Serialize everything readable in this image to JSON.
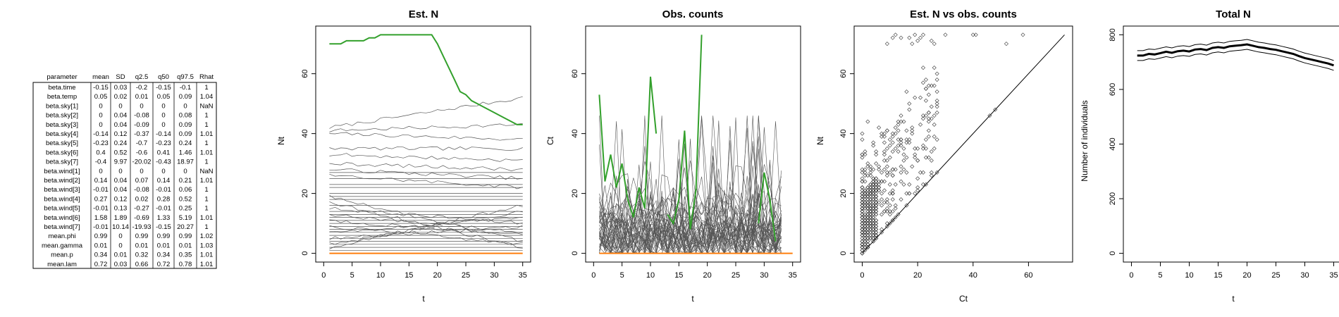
{
  "param_table": {
    "columns": [
      "parameter",
      "mean",
      "SD",
      "q2.5",
      "q50",
      "q97.5",
      "Rhat"
    ],
    "rows": [
      [
        "beta.time",
        "-0.15",
        "0.03",
        "-0.2",
        "-0.15",
        "-0.1",
        "1"
      ],
      [
        "beta.temp",
        "0.05",
        "0.02",
        "0.01",
        "0.05",
        "0.09",
        "1.04"
      ],
      [
        "beta.sky[1]",
        "0",
        "0",
        "0",
        "0",
        "0",
        "NaN"
      ],
      [
        "beta.sky[2]",
        "0",
        "0.04",
        "-0.08",
        "0",
        "0.08",
        "1"
      ],
      [
        "beta.sky[3]",
        "0",
        "0.04",
        "-0.09",
        "0",
        "0.09",
        "1"
      ],
      [
        "beta.sky[4]",
        "-0.14",
        "0.12",
        "-0.37",
        "-0.14",
        "0.09",
        "1.01"
      ],
      [
        "beta.sky[5]",
        "-0.23",
        "0.24",
        "-0.7",
        "-0.23",
        "0.24",
        "1"
      ],
      [
        "beta.sky[6]",
        "0.4",
        "0.52",
        "-0.6",
        "0.41",
        "1.46",
        "1.01"
      ],
      [
        "beta.sky[7]",
        "-0.4",
        "9.97",
        "-20.02",
        "-0.43",
        "18.97",
        "1"
      ],
      [
        "beta.wind[1]",
        "0",
        "0",
        "0",
        "0",
        "0",
        "NaN"
      ],
      [
        "beta.wind[2]",
        "0.14",
        "0.04",
        "0.07",
        "0.14",
        "0.21",
        "1.01"
      ],
      [
        "beta.wind[3]",
        "-0.01",
        "0.04",
        "-0.08",
        "-0.01",
        "0.06",
        "1"
      ],
      [
        "beta.wind[4]",
        "0.27",
        "0.12",
        "0.02",
        "0.28",
        "0.52",
        "1"
      ],
      [
        "beta.wind[5]",
        "-0.01",
        "0.13",
        "-0.27",
        "-0.01",
        "0.25",
        "1"
      ],
      [
        "beta.wind[6]",
        "1.58",
        "1.89",
        "-0.69",
        "1.33",
        "5.19",
        "1.01"
      ],
      [
        "beta.wind[7]",
        "-0.01",
        "10.14",
        "-19.93",
        "-0.15",
        "20.27",
        "1"
      ],
      [
        "mean.phi",
        "0.99",
        "0",
        "0.99",
        "0.99",
        "0.99",
        "1.02"
      ],
      [
        "mean.gamma",
        "0.01",
        "0",
        "0.01",
        "0.01",
        "0.01",
        "1.03"
      ],
      [
        "mean.p",
        "0.34",
        "0.01",
        "0.32",
        "0.34",
        "0.35",
        "1.01"
      ],
      [
        "mean.lam",
        "0.72",
        "0.03",
        "0.66",
        "0.72",
        "0.78",
        "1.01"
      ]
    ]
  },
  "chart_data": [
    {
      "id": "est_n",
      "type": "line",
      "title": "Est. N",
      "xlabel": "t",
      "ylabel": "Nt",
      "xlim": [
        0,
        35
      ],
      "ylim": [
        0,
        73
      ],
      "xticks": [
        0,
        5,
        10,
        15,
        20,
        25,
        30,
        35
      ],
      "yticks": [
        0,
        20,
        40,
        60
      ],
      "colors": {
        "background_series": "#555555",
        "highlight": "#33a02c",
        "zero_series": "#ff7f0e"
      },
      "t_range": [
        1,
        35
      ],
      "highlight_series": [
        70,
        70,
        70,
        71,
        71,
        71,
        71,
        72,
        72,
        73,
        73,
        73,
        73,
        73,
        73,
        73,
        73,
        73,
        73,
        70,
        66,
        62,
        58,
        54,
        53,
        51,
        50,
        49,
        48,
        47,
        46,
        45,
        44,
        43,
        43
      ],
      "flat_levels": [
        1,
        2,
        3,
        4,
        5,
        6,
        7,
        8,
        9,
        10,
        11,
        12,
        13,
        14,
        16,
        18,
        19,
        20,
        22,
        23,
        25,
        27
      ],
      "trend_series": [
        {
          "start": 42,
          "end": 52
        },
        {
          "start": 41,
          "end": 43
        },
        {
          "start": 40,
          "end": 38
        },
        {
          "start": 35,
          "end": 35
        },
        {
          "start": 33,
          "end": 31
        },
        {
          "start": 30,
          "end": 28
        },
        {
          "start": 28,
          "end": 25
        },
        {
          "start": 26,
          "end": 22
        },
        {
          "start": 19,
          "end": 4
        },
        {
          "start": 17,
          "end": 2
        },
        {
          "start": 15,
          "end": 10
        },
        {
          "start": 13,
          "end": 7
        },
        {
          "start": 11,
          "end": 6
        },
        {
          "start": 9,
          "end": 3
        },
        {
          "start": 7,
          "end": 12
        },
        {
          "start": 5,
          "end": 9
        },
        {
          "start": 3,
          "end": 14
        },
        {
          "start": 2,
          "end": 16
        }
      ],
      "zero_series_value": 0
    },
    {
      "id": "obs_counts",
      "type": "line",
      "title": "Obs. counts",
      "xlabel": "t",
      "ylabel": "Ct",
      "xlim": [
        0,
        35
      ],
      "ylim": [
        0,
        73
      ],
      "xticks": [
        0,
        5,
        10,
        15,
        20,
        25,
        30,
        35
      ],
      "yticks": [
        0,
        20,
        40,
        60
      ],
      "colors": {
        "background_series": "#555555",
        "highlight": "#33a02c",
        "zero_series": "#ff7f0e"
      },
      "t_range": [
        1,
        33
      ],
      "highlight_series": [
        {
          "t": 1,
          "v": 53
        },
        {
          "t": 2,
          "v": 24
        },
        {
          "t": 3,
          "v": 33
        },
        {
          "t": 4,
          "v": 22
        },
        {
          "t": 5,
          "v": 30
        },
        {
          "t": 6,
          "v": 18
        },
        {
          "t": 7,
          "v": 12
        },
        {
          "t": 8,
          "v": 22
        },
        {
          "t": 9,
          "v": 15
        },
        {
          "t": 10,
          "v": 59
        },
        {
          "t": 11,
          "v": 40
        },
        {
          "t": 13,
          "v": 13
        },
        {
          "t": 14,
          "v": 10
        },
        {
          "t": 15,
          "v": 18
        },
        {
          "t": 16,
          "v": 41
        },
        {
          "t": 17,
          "v": 8
        },
        {
          "t": 18,
          "v": 21
        },
        {
          "t": 19,
          "v": 73
        },
        {
          "t": 29,
          "v": 10
        },
        {
          "t": 30,
          "v": 27
        },
        {
          "t": 31,
          "v": 18
        },
        {
          "t": 32,
          "v": 4
        }
      ],
      "noise_series_count": 45,
      "noise_max": 46,
      "zero_series_value": 0
    },
    {
      "id": "scatter",
      "type": "scatter",
      "title": "Est. N vs obs. counts",
      "xlabel": "Ct",
      "ylabel": "Nt",
      "xlim": [
        0,
        73
      ],
      "ylim": [
        0,
        73
      ],
      "xticks": [
        0,
        20,
        40,
        60
      ],
      "yticks": [
        0,
        20,
        40,
        60
      ],
      "identity_line": true,
      "marker": "diamond-open",
      "upper_points": [
        [
          12,
          73
        ],
        [
          14,
          72
        ],
        [
          17,
          72
        ],
        [
          19,
          73
        ],
        [
          21,
          72
        ],
        [
          25,
          71
        ],
        [
          26,
          70
        ],
        [
          30,
          73
        ],
        [
          40,
          73
        ],
        [
          41,
          73
        ],
        [
          52,
          70
        ],
        [
          58,
          73
        ],
        [
          18,
          70
        ],
        [
          20,
          71
        ],
        [
          22,
          73
        ],
        [
          9,
          70
        ],
        [
          11,
          72
        ]
      ],
      "bulk_point_count": 620
    },
    {
      "id": "total_n",
      "type": "line",
      "title": "Total N",
      "xlabel": "t",
      "ylabel": "Number of individuals",
      "xlim": [
        0,
        35
      ],
      "ylim": [
        0,
        800
      ],
      "xticks": [
        0,
        5,
        10,
        15,
        20,
        25,
        30,
        35
      ],
      "yticks": [
        0,
        200,
        400,
        600,
        800
      ],
      "x": [
        1,
        2,
        3,
        4,
        5,
        6,
        7,
        8,
        9,
        10,
        11,
        12,
        13,
        14,
        15,
        16,
        17,
        18,
        19,
        20,
        21,
        22,
        23,
        24,
        25,
        26,
        27,
        28,
        29,
        30,
        31,
        32,
        33,
        34,
        35
      ],
      "mean": [
        724,
        724,
        730,
        728,
        733,
        738,
        734,
        740,
        742,
        739,
        746,
        748,
        744,
        752,
        755,
        752,
        758,
        760,
        762,
        765,
        760,
        755,
        752,
        748,
        745,
        740,
        735,
        730,
        722,
        715,
        710,
        705,
        700,
        695,
        688
      ],
      "lower": [
        706,
        706,
        712,
        710,
        715,
        720,
        716,
        722,
        724,
        721,
        728,
        730,
        726,
        734,
        737,
        734,
        740,
        742,
        744,
        747,
        742,
        737,
        734,
        730,
        727,
        722,
        717,
        712,
        704,
        697,
        692,
        687,
        682,
        677,
        670
      ],
      "upper": [
        742,
        742,
        748,
        746,
        751,
        756,
        752,
        758,
        760,
        757,
        764,
        766,
        762,
        770,
        773,
        770,
        776,
        778,
        780,
        783,
        778,
        773,
        770,
        766,
        763,
        758,
        753,
        748,
        740,
        733,
        728,
        723,
        718,
        713,
        706
      ]
    }
  ]
}
